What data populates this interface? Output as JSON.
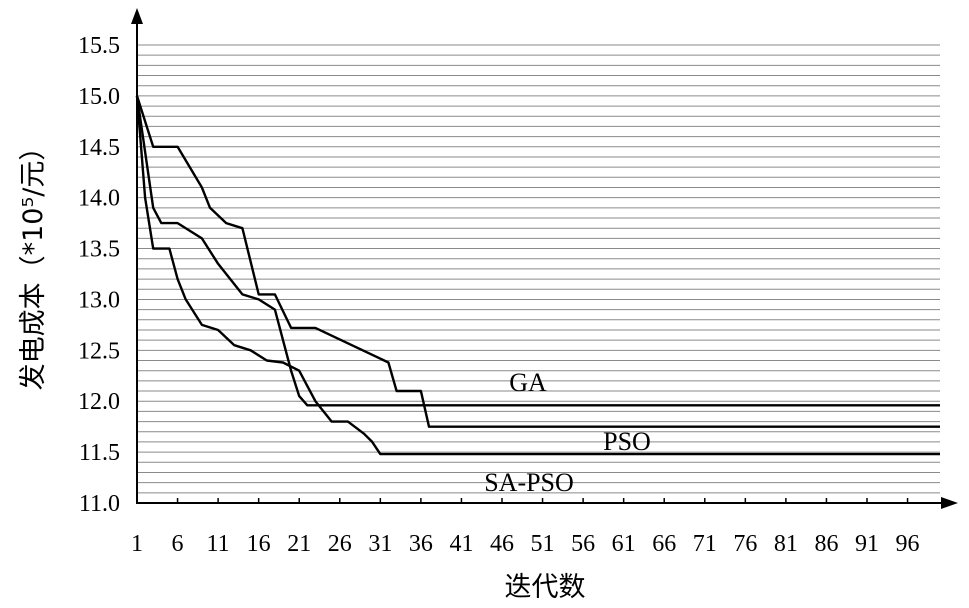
{
  "chart_data": {
    "type": "line",
    "title": "",
    "xlabel": "迭代数",
    "ylabel": "发电成本（*10⁵/元）",
    "xlim": [
      1,
      100
    ],
    "ylim": [
      11.0,
      15.5
    ],
    "x_ticks": [
      "1",
      "6",
      "11",
      "16",
      "21",
      "26",
      "31",
      "36",
      "41",
      "46",
      "51",
      "56",
      "61",
      "66",
      "71",
      "76",
      "81",
      "86",
      "91",
      "96"
    ],
    "y_ticks": [
      "11.0",
      "11.5",
      "12.0",
      "12.5",
      "13.0",
      "13.5",
      "14.0",
      "14.5",
      "15.0",
      "15.5"
    ],
    "grid": true,
    "series": [
      {
        "name": "GA",
        "x": [
          1,
          3,
          6,
          9,
          10,
          12,
          14,
          16,
          18,
          20,
          23,
          32,
          33,
          36,
          37,
          100
        ],
        "y": [
          15.0,
          14.5,
          14.5,
          14.1,
          13.9,
          13.75,
          13.7,
          13.05,
          13.05,
          12.72,
          12.72,
          12.38,
          12.1,
          12.1,
          11.75,
          11.75
        ]
      },
      {
        "name": "PSO",
        "x": [
          1,
          3,
          4,
          6,
          9,
          11,
          14,
          16,
          18,
          20,
          21,
          22,
          24,
          100
        ],
        "y": [
          15.0,
          13.9,
          13.75,
          13.75,
          13.6,
          13.35,
          13.05,
          13.0,
          12.9,
          12.3,
          12.05,
          11.96,
          11.96,
          11.96
        ]
      },
      {
        "name": "SA-PSO",
        "x": [
          1,
          2,
          3,
          5,
          6,
          7,
          9,
          11,
          13,
          15,
          17,
          19,
          21,
          23,
          25,
          27,
          29,
          30,
          31,
          32,
          33,
          100
        ],
        "y": [
          15.0,
          14.0,
          13.5,
          13.5,
          13.2,
          13.0,
          12.75,
          12.7,
          12.55,
          12.5,
          12.4,
          12.38,
          12.3,
          12.0,
          11.8,
          11.8,
          11.68,
          11.6,
          11.48,
          11.48,
          11.48,
          11.48
        ]
      }
    ],
    "annotations": [
      "GA",
      "PSO",
      "SA-PSO"
    ]
  }
}
